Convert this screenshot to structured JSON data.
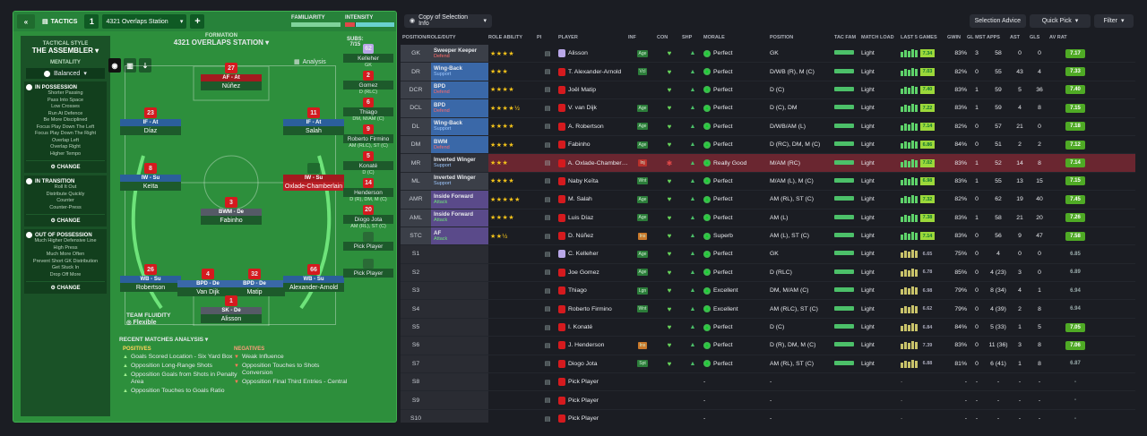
{
  "tactics": {
    "title": "TACTICS",
    "slot": "1",
    "name": "4321 Overlaps Station",
    "familiarity": "FAMILIARITY",
    "intensity": "INTENSITY"
  },
  "sidebar": {
    "style_label": "TACTICAL STYLE",
    "style": "THE ASSEMBLER",
    "mentality_label": "MENTALITY",
    "mentality": "Balanced",
    "possession": {
      "title": "IN POSSESSION",
      "items": [
        "Shorter Passing",
        "Pass Into Space",
        "Low Crosses",
        "Run At Defence",
        "Be More Disciplined",
        "Focus Play Down The Left",
        "Focus Play Down The Right",
        "Overlap Left",
        "Overlap Right",
        "Higher Tempo"
      ]
    },
    "transition": {
      "title": "IN TRANSITION",
      "items": [
        "Roll It Out",
        "Distribute Quickly",
        "Counter",
        "Counter-Press"
      ]
    },
    "oop": {
      "title": "OUT OF POSSESSION",
      "items": [
        "Much Higher Defensive Line",
        "High Press",
        "Much More Often",
        "Prevent Short GK Distribution",
        "Get Stuck In",
        "Drop Off More"
      ]
    },
    "change": "CHANGE"
  },
  "formation": {
    "label": "FORMATION",
    "name": "4321 OVERLAPS STATION",
    "analysis": "Analysis",
    "subs_label": "SUBS:",
    "subs_count": "7/15",
    "fluidity_label": "TEAM FLUIDITY",
    "fluidity": "Flexible"
  },
  "pitch": [
    {
      "no": "27",
      "role": "AF - At",
      "name": "Núñez"
    },
    {
      "no": "23",
      "role": "IF - At",
      "name": "Díaz"
    },
    {
      "no": "11",
      "role": "IF - At",
      "name": "Salah"
    },
    {
      "no": "8",
      "role": "IW - Su",
      "name": "Keïta"
    },
    {
      "no": "",
      "role": "IW - Su",
      "name": "Oxlade-Chamberlain"
    },
    {
      "no": "3",
      "role": "BWM - De",
      "name": "Fabinho"
    },
    {
      "no": "26",
      "role": "WB - Su",
      "name": "Robertson"
    },
    {
      "no": "4",
      "role": "BPD - De",
      "name": "Van Dijk"
    },
    {
      "no": "32",
      "role": "BPD - De",
      "name": "Matip"
    },
    {
      "no": "66",
      "role": "WB - Su",
      "name": "Alexander-Arnold"
    },
    {
      "no": "1",
      "role": "SK - De",
      "name": "Alisson"
    }
  ],
  "subs": [
    {
      "no": "62",
      "name": "Kelleher",
      "pos": "GK"
    },
    {
      "no": "2",
      "name": "Gomez",
      "pos": "D (RLC)"
    },
    {
      "no": "6",
      "name": "Thiago",
      "pos": "DM, M/AM (C)"
    },
    {
      "no": "9",
      "name": "Roberto Firmino",
      "pos": "AM (RLC), ST (C)"
    },
    {
      "no": "5",
      "name": "Konaté",
      "pos": "D (C)"
    },
    {
      "no": "14",
      "name": "Henderson",
      "pos": "D (R), DM, M (C)"
    },
    {
      "no": "20",
      "name": "Diogo Jota",
      "pos": "AM (RL), ST (C)"
    },
    {
      "no": "",
      "name": "Pick Player",
      "pos": ""
    },
    {
      "no": "",
      "name": "Pick Player",
      "pos": ""
    }
  ],
  "analysis": {
    "title": "RECENT MATCHES ANALYSIS",
    "pos_label": "POSITIVES",
    "neg_label": "NEGATIVES",
    "positives": [
      "Goals Scored Location - Six Yard Box",
      "Opposition Long-Range Shots",
      "Opposition Goals from Shots in Penalty Area",
      "Opposition Touches to Goals Ratio"
    ],
    "negatives": [
      "Weak Influence",
      "Opposition Touches to Shots Conversion",
      "Opposition Final Third Entries - Central"
    ]
  },
  "right": {
    "view": "Copy of Selection Info",
    "selection_advice": "Selection Advice",
    "quick_pick": "Quick Pick",
    "filter": "Filter"
  },
  "columns": [
    "POSITION/ROLE/DUTY",
    "ROLE ABILITY",
    "PI",
    "PLAYER",
    "INF",
    "CON",
    "SHP",
    "MORALE",
    "POSITION",
    "TAC FAM",
    "MATCH LOAD",
    "LAST 5 GAMES",
    "GWIN",
    "GL MST",
    "APPS",
    "AST",
    "GLS",
    "AV RAT"
  ],
  "rows": [
    {
      "pos": "GK",
      "role": "Sweeper Keeper",
      "duty": "Defend",
      "stars": "★★★★",
      "player": "Alisson",
      "inf": "Age",
      "morale": "Perfect",
      "position": "GK",
      "load": "Light",
      "av": "7.34",
      "gwin": "83%",
      "gm": "3",
      "apps": "58",
      "ast": "0",
      "gls": "0",
      "rat": "7.17"
    },
    {
      "pos": "DR",
      "role": "Wing-Back",
      "duty": "Support",
      "stars": "★★★",
      "player": "T. Alexander-Arnold",
      "inf": "Vcl",
      "morale": "Perfect",
      "position": "D/WB (R), M (C)",
      "load": "Light",
      "av": "7.03",
      "gwin": "82%",
      "gm": "0",
      "apps": "55",
      "ast": "43",
      "gls": "4",
      "rat": "7.33"
    },
    {
      "pos": "DCR",
      "role": "BPD",
      "duty": "Defend",
      "stars": "★★★★",
      "player": "Joël Matip",
      "inf": "",
      "morale": "Perfect",
      "position": "D (C)",
      "load": "Light",
      "av": "7.40",
      "gwin": "83%",
      "gm": "1",
      "apps": "59",
      "ast": "5",
      "gls": "36",
      "rat": "7.40"
    },
    {
      "pos": "DCL",
      "role": "BPD",
      "duty": "Defend",
      "stars": "★★★★½",
      "player": "V. van Dijk",
      "inf": "Age",
      "morale": "Perfect",
      "position": "D (C), DM",
      "load": "Light",
      "av": "7.22",
      "gwin": "83%",
      "gm": "1",
      "apps": "59",
      "ast": "4",
      "gls": "8",
      "rat": "7.15"
    },
    {
      "pos": "DL",
      "role": "Wing-Back",
      "duty": "Support",
      "stars": "★★★★",
      "player": "A. Robertson",
      "inf": "Age",
      "morale": "Perfect",
      "position": "D/WB/AM (L)",
      "load": "Light",
      "av": "7.14",
      "gwin": "82%",
      "gm": "0",
      "apps": "57",
      "ast": "21",
      "gls": "0",
      "rat": "7.18"
    },
    {
      "pos": "DM",
      "role": "BWM",
      "duty": "Defend",
      "stars": "★★★★",
      "player": "Fabinho",
      "inf": "Age",
      "morale": "Perfect",
      "position": "D (RC), DM, M (C)",
      "load": "Light",
      "av": "6.86",
      "gwin": "84%",
      "gm": "0",
      "apps": "51",
      "ast": "2",
      "gls": "2",
      "rat": "7.12"
    },
    {
      "pos": "MR",
      "role": "Inverted Winger",
      "duty": "Support",
      "stars": "★★★",
      "player": "A. Oxlade-Chamberlain",
      "inf": "Inj",
      "morale": "Really Good",
      "position": "M/AM (RC)",
      "load": "Light",
      "av": "7.02",
      "gwin": "83%",
      "gm": "1",
      "apps": "52",
      "ast": "14",
      "gls": "8",
      "rat": "7.14"
    },
    {
      "pos": "ML",
      "role": "Inverted Winger",
      "duty": "Support",
      "stars": "★★★★",
      "player": "Naby Keïta",
      "inf": "Wnt",
      "morale": "Perfect",
      "position": "M/AM (L), M (C)",
      "load": "Light",
      "av": "6.98",
      "gwin": "83%",
      "gm": "1",
      "apps": "55",
      "ast": "13",
      "gls": "15",
      "rat": "7.15"
    },
    {
      "pos": "AMR",
      "role": "Inside Forward",
      "duty": "Attack",
      "stars": "★★★★★",
      "player": "M. Salah",
      "inf": "Age",
      "morale": "Perfect",
      "position": "AM (RL), ST (C)",
      "load": "Light",
      "av": "7.32",
      "gwin": "82%",
      "gm": "0",
      "apps": "62",
      "ast": "19",
      "gls": "40",
      "rat": "7.45"
    },
    {
      "pos": "AML",
      "role": "Inside Forward",
      "duty": "Attack",
      "stars": "★★★★",
      "player": "Luis Díaz",
      "inf": "Age",
      "morale": "Perfect",
      "position": "AM (L)",
      "load": "Light",
      "av": "7.38",
      "gwin": "83%",
      "gm": "1",
      "apps": "58",
      "ast": "21",
      "gls": "20",
      "rat": "7.26"
    },
    {
      "pos": "STC",
      "role": "AF",
      "duty": "Attack",
      "stars": "★★½",
      "player": "D. Núñez",
      "inf": "Ins",
      "morale": "Superb",
      "position": "AM (L), ST (C)",
      "load": "Light",
      "av": "7.14",
      "gwin": "83%",
      "gm": "0",
      "apps": "56",
      "ast": "9",
      "gls": "47",
      "rat": "7.58"
    },
    {
      "pos": "S1",
      "role": "",
      "duty": "",
      "stars": "",
      "player": "C. Kelleher",
      "inf": "Age",
      "morale": "Perfect",
      "position": "GK",
      "load": "Light",
      "av": "6.65",
      "gwin": "75%",
      "gm": "0",
      "apps": "4",
      "ast": "0",
      "gls": "0",
      "rat": "6.85"
    },
    {
      "pos": "S2",
      "role": "",
      "duty": "",
      "stars": "",
      "player": "Joe Gomez",
      "inf": "Age",
      "morale": "Perfect",
      "position": "D (RLC)",
      "load": "Light",
      "av": "6.78",
      "gwin": "85%",
      "gm": "0",
      "apps": "4 (23)",
      "ast": "3",
      "gls": "0",
      "rat": "6.89"
    },
    {
      "pos": "S3",
      "role": "",
      "duty": "",
      "stars": "",
      "player": "Thiago",
      "inf": "Lgn",
      "morale": "Excellent",
      "position": "DM, M/AM (C)",
      "load": "Light",
      "av": "6.98",
      "gwin": "79%",
      "gm": "0",
      "apps": "8 (34)",
      "ast": "4",
      "gls": "1",
      "rat": "6.94"
    },
    {
      "pos": "S4",
      "role": "",
      "duty": "",
      "stars": "",
      "player": "Roberto Firmino",
      "inf": "Wnt",
      "morale": "Excellent",
      "position": "AM (RLC), ST (C)",
      "load": "Light",
      "av": "6.62",
      "gwin": "79%",
      "gm": "0",
      "apps": "4 (39)",
      "ast": "2",
      "gls": "8",
      "rat": "6.94"
    },
    {
      "pos": "S5",
      "role": "",
      "duty": "",
      "stars": "",
      "player": "I. Konaté",
      "inf": "",
      "morale": "Perfect",
      "position": "D (C)",
      "load": "Light",
      "av": "6.84",
      "gwin": "84%",
      "gm": "0",
      "apps": "5 (33)",
      "ast": "1",
      "gls": "5",
      "rat": "7.05"
    },
    {
      "pos": "S6",
      "role": "",
      "duty": "",
      "stars": "",
      "player": "J. Henderson",
      "inf": "Ins",
      "morale": "Perfect",
      "position": "D (R), DM, M (C)",
      "load": "Light",
      "av": "7.39",
      "gwin": "83%",
      "gm": "0",
      "apps": "11 (36)",
      "ast": "3",
      "gls": "8",
      "rat": "7.06"
    },
    {
      "pos": "S7",
      "role": "",
      "duty": "",
      "stars": "",
      "player": "Diogo Jota",
      "inf": "Spt",
      "morale": "Perfect",
      "position": "AM (RL), ST (C)",
      "load": "Light",
      "av": "6.88",
      "gwin": "81%",
      "gm": "0",
      "apps": "6 (41)",
      "ast": "1",
      "gls": "8",
      "rat": "6.87"
    },
    {
      "pos": "S8",
      "role": "",
      "duty": "",
      "stars": "",
      "player": "Pick Player",
      "inf": "",
      "morale": "-",
      "position": "-",
      "load": "",
      "av": "",
      "gwin": "-",
      "gm": "-",
      "apps": "-",
      "ast": "-",
      "gls": "-",
      "rat": "-"
    },
    {
      "pos": "S9",
      "role": "",
      "duty": "",
      "stars": "",
      "player": "Pick Player",
      "inf": "",
      "morale": "-",
      "position": "-",
      "load": "",
      "av": "",
      "gwin": "-",
      "gm": "-",
      "apps": "-",
      "ast": "-",
      "gls": "-",
      "rat": "-"
    },
    {
      "pos": "S10",
      "role": "",
      "duty": "",
      "stars": "",
      "player": "Pick Player",
      "inf": "",
      "morale": "-",
      "position": "-",
      "load": "",
      "av": "",
      "gwin": "-",
      "gm": "-",
      "apps": "-",
      "ast": "-",
      "gls": "-",
      "rat": "-"
    }
  ],
  "colors": {
    "accent": "#2d8f3c",
    "selected_row": "#6a2630",
    "defend_role": "#3a68a8",
    "support_role": "#3a68a8",
    "attack_role": "#5a4a8a"
  }
}
